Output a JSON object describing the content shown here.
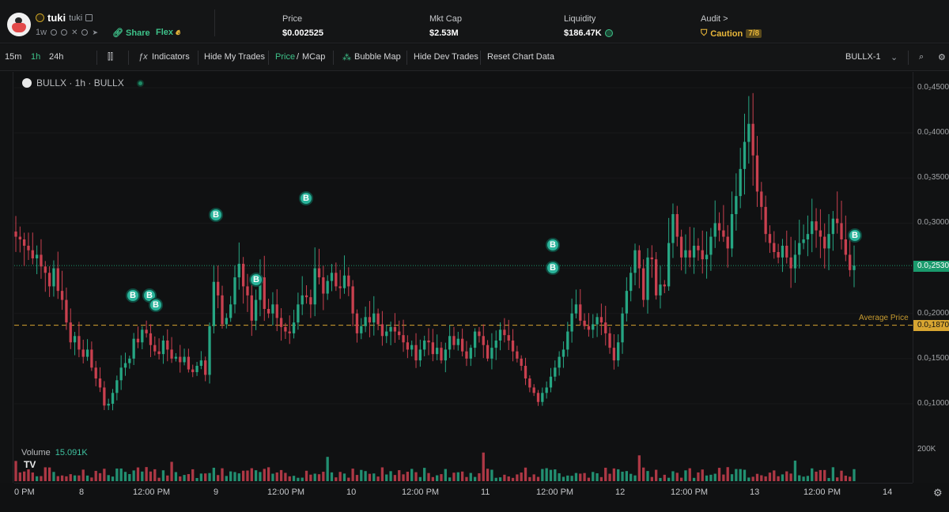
{
  "token": {
    "symbol": "tuki",
    "name": "tuki",
    "age": "1w",
    "share_label": "Share",
    "flex_label": "Flex"
  },
  "stats": [
    {
      "label": "Price",
      "value": "$0.002525"
    },
    {
      "label": "Mkt Cap",
      "value": "$2.53M"
    },
    {
      "label": "Liquidity",
      "value": "$186.47K"
    },
    {
      "label": "Audit >",
      "value": "Caution",
      "badge": "7/8"
    }
  ],
  "toolbar": {
    "intervals": [
      "15m",
      "1h",
      "24h"
    ],
    "indicators": "Indicators",
    "hide_my_trades": "Hide My Trades",
    "price": "Price",
    "slash": "/",
    "mcap": "MCap",
    "bubble_map": "Bubble Map",
    "hide_dev_trades": "Hide Dev Trades",
    "reset_chart": "Reset Chart Data",
    "layout": "BULLX-1"
  },
  "chart": {
    "legend": "BULLX · 1h · BULLX",
    "volume_label": "Volume",
    "volume_value": "15.091K",
    "avg_label": "Average Price",
    "price_tag": "0.0₂2530",
    "avg_tag": "0.0₂1870",
    "vol_tick": "200K",
    "yticks": [
      "0.0₂4500",
      "0.0₂4000",
      "0.0₂3500",
      "0.0₂3000",
      "0.0₂2000",
      "0.0₂1500",
      "0.0₂1000"
    ],
    "xticks": [
      "0 PM",
      "8",
      "12:00 PM",
      "9",
      "12:00 PM",
      "10",
      "12:00 PM",
      "11",
      "12:00 PM",
      "12",
      "12:00 PM",
      "13",
      "12:00 PM",
      "14"
    ],
    "buy_marker": "B",
    "colors": {
      "up": "#26a683",
      "down": "#c9404f",
      "avg": "#d7a531"
    }
  },
  "chart_data": {
    "type": "candlestick",
    "x_unit": "hour",
    "y_unit": "price (USD)",
    "ylim": [
      0.0008,
      0.0047
    ],
    "current_price": 0.00253,
    "average_price": 0.00187,
    "closes": [
      0.00285,
      0.00282,
      0.00275,
      0.0027,
      0.00261,
      0.00265,
      0.00252,
      0.00245,
      0.0023,
      0.0025,
      0.00225,
      0.00215,
      0.0019,
      0.00168,
      0.00175,
      0.0016,
      0.00152,
      0.0016,
      0.0014,
      0.00128,
      0.00118,
      0.00098,
      0.001,
      0.00112,
      0.00126,
      0.0014,
      0.00145,
      0.0015,
      0.00172,
      0.00168,
      0.00182,
      0.00178,
      0.00165,
      0.00158,
      0.00155,
      0.0017,
      0.0016,
      0.0015,
      0.00152,
      0.00146,
      0.00152,
      0.00138,
      0.00135,
      0.00142,
      0.00148,
      0.00132,
      0.00186,
      0.00235,
      0.0022,
      0.00188,
      0.00195,
      0.0021,
      0.0024,
      0.00255,
      0.0023,
      0.0022,
      0.00192,
      0.00215,
      0.0024,
      0.00205,
      0.002,
      0.0021,
      0.00195,
      0.00185,
      0.0018,
      0.00178,
      0.0019,
      0.0021,
      0.0022,
      0.00218,
      0.0021,
      0.0025,
      0.0024,
      0.00222,
      0.00236,
      0.00245,
      0.0023,
      0.00228,
      0.00242,
      0.0023,
      0.002,
      0.00178,
      0.00186,
      0.00196,
      0.0019,
      0.002,
      0.00188,
      0.00175,
      0.0018,
      0.00185,
      0.0018,
      0.00176,
      0.00168,
      0.0016,
      0.00165,
      0.00148,
      0.0016,
      0.0017,
      0.00168,
      0.00155,
      0.00162,
      0.00148,
      0.0016,
      0.00175,
      0.00165,
      0.00172,
      0.00158,
      0.0015,
      0.00162,
      0.0018,
      0.00175,
      0.00165,
      0.0015,
      0.00162,
      0.0017,
      0.00182,
      0.00176,
      0.0017,
      0.00158,
      0.0015,
      0.00142,
      0.00128,
      0.00118,
      0.00112,
      0.00102,
      0.00112,
      0.00118,
      0.0013,
      0.0014,
      0.00152,
      0.0016,
      0.0018,
      0.002,
      0.0021,
      0.00192,
      0.00186,
      0.00182,
      0.00188,
      0.00196,
      0.0019,
      0.00178,
      0.00162,
      0.00148,
      0.00168,
      0.002,
      0.00225,
      0.00245,
      0.0027,
      0.0025,
      0.00215,
      0.00262,
      0.0026,
      0.0022,
      0.00232,
      0.0023,
      0.00278,
      0.0031,
      0.00285,
      0.00262,
      0.0027,
      0.00262,
      0.00275,
      0.0027,
      0.0026,
      0.00265,
      0.00285,
      0.003,
      0.00292,
      0.00285,
      0.00272,
      0.0031,
      0.0033,
      0.0036,
      0.0039,
      0.0041,
      0.00375,
      0.00335,
      0.00318,
      0.00288,
      0.00278,
      0.00268,
      0.00262,
      0.00275,
      0.00262,
      0.0025,
      0.00265,
      0.00278,
      0.00282,
      0.00288,
      0.00302,
      0.00292,
      0.00285,
      0.00272,
      0.00288,
      0.00305,
      0.003,
      0.00282,
      0.00265,
      0.00248,
      0.00253
    ],
    "volume_scale": "200K"
  }
}
